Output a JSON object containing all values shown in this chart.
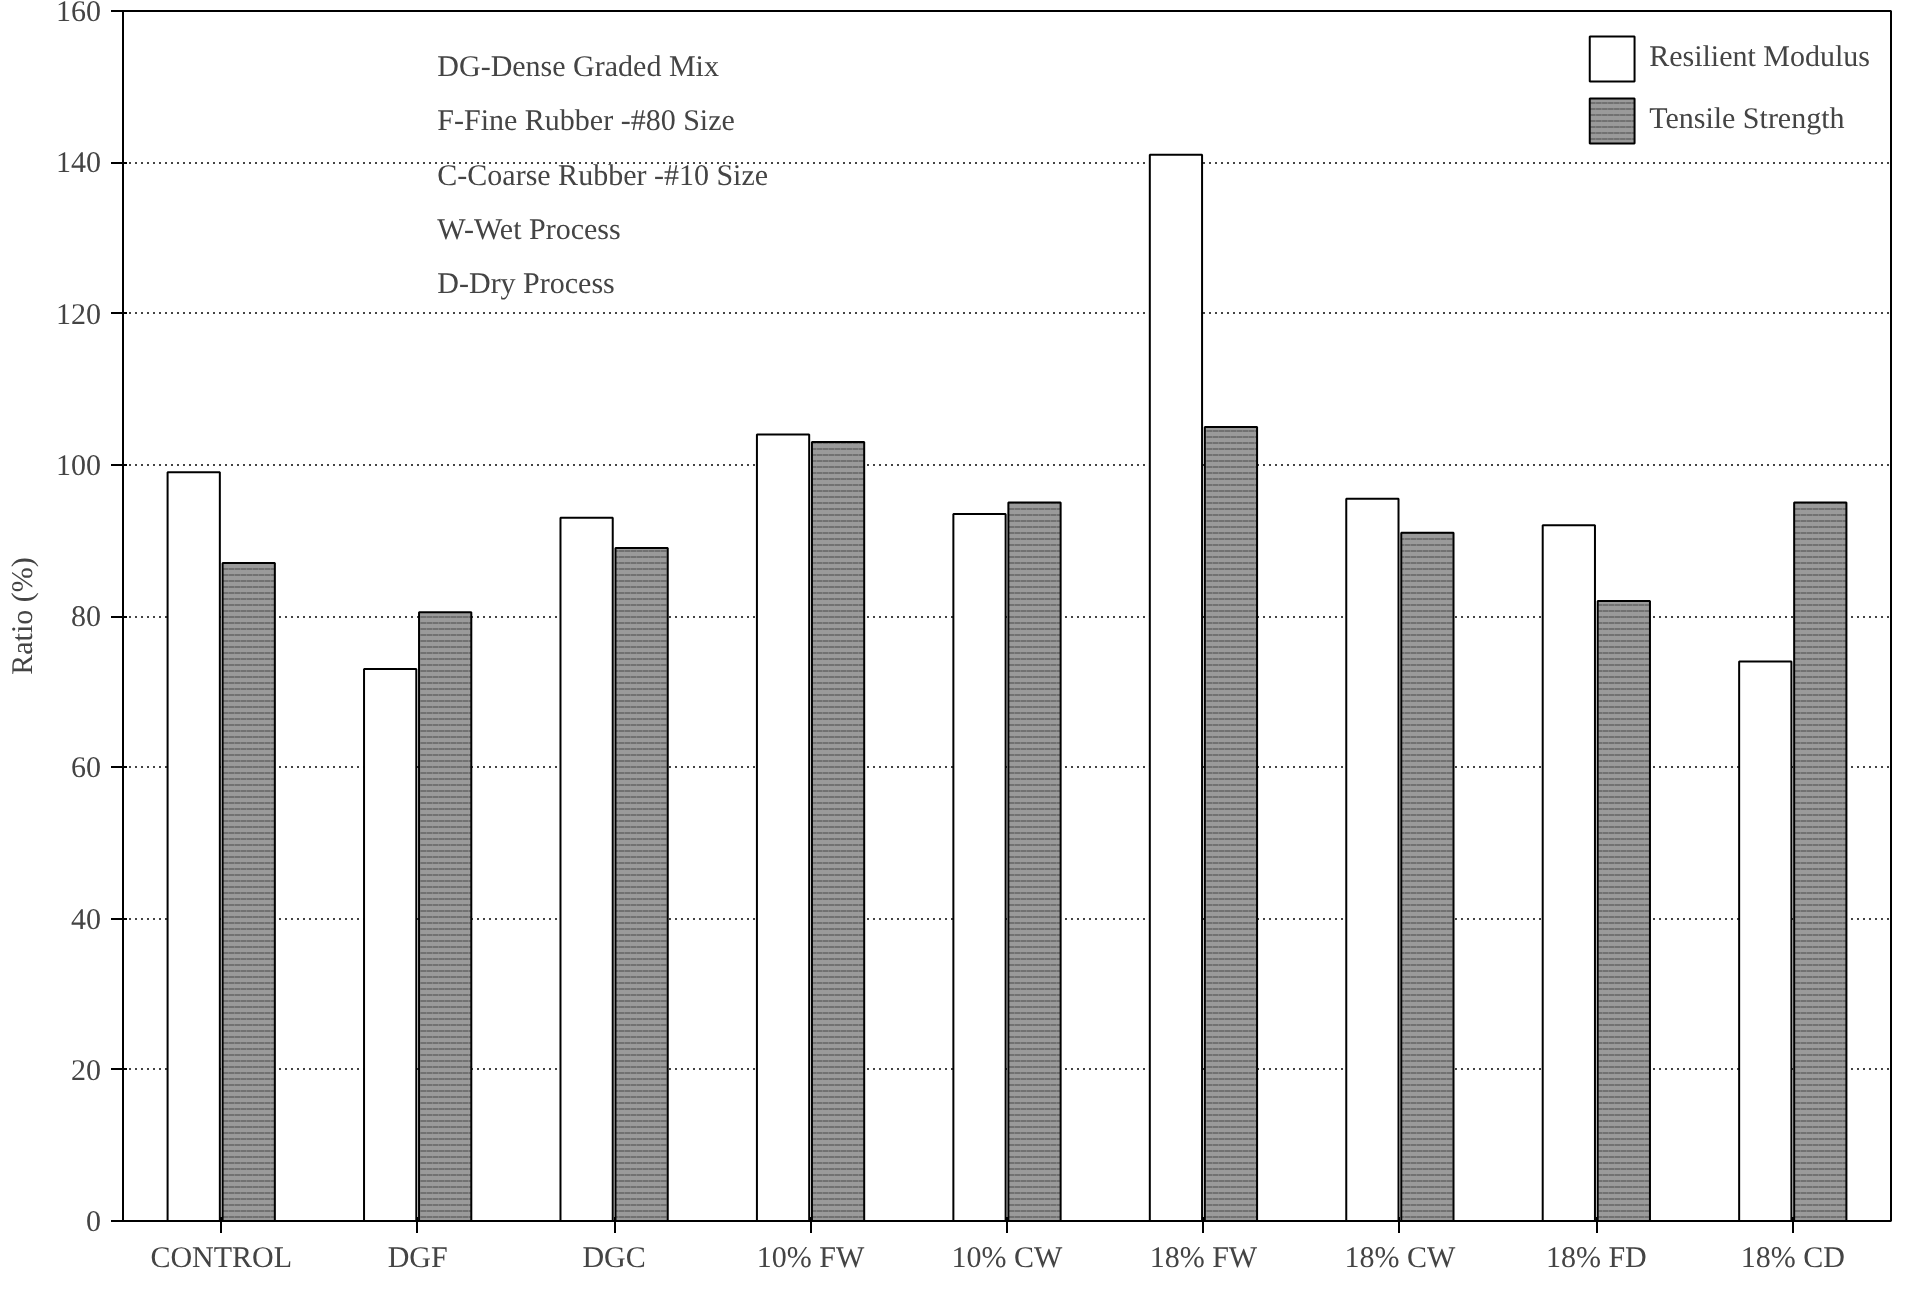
{
  "chart_data": {
    "type": "bar",
    "ylabel": "Ratio (%)",
    "categories": [
      "CONTROL",
      "DGF",
      "DGC",
      "10% FW",
      "10% CW",
      "18% FW",
      "18% CW",
      "18% FD",
      "18% CD"
    ],
    "series": [
      {
        "name": "Resilient Modulus",
        "color": "#ffffff",
        "values": [
          99,
          73,
          93,
          104,
          93.5,
          141,
          95.5,
          92,
          74
        ]
      },
      {
        "name": "Tensile Strength",
        "color": "#9a9a9a",
        "values": [
          87,
          80.5,
          89,
          103,
          95,
          105,
          91,
          82,
          95
        ]
      }
    ],
    "ylim": [
      0,
      160
    ],
    "yticks": [
      0,
      20,
      40,
      60,
      80,
      100,
      120,
      140,
      160
    ],
    "grid": "y",
    "legend": "top right",
    "annotations": [
      "DG-Dense Graded Mix",
      "F-Fine Rubber -#80 Size",
      "C-Coarse Rubber -#10 Size",
      "W-Wet Process",
      "D-Dry Process"
    ]
  }
}
